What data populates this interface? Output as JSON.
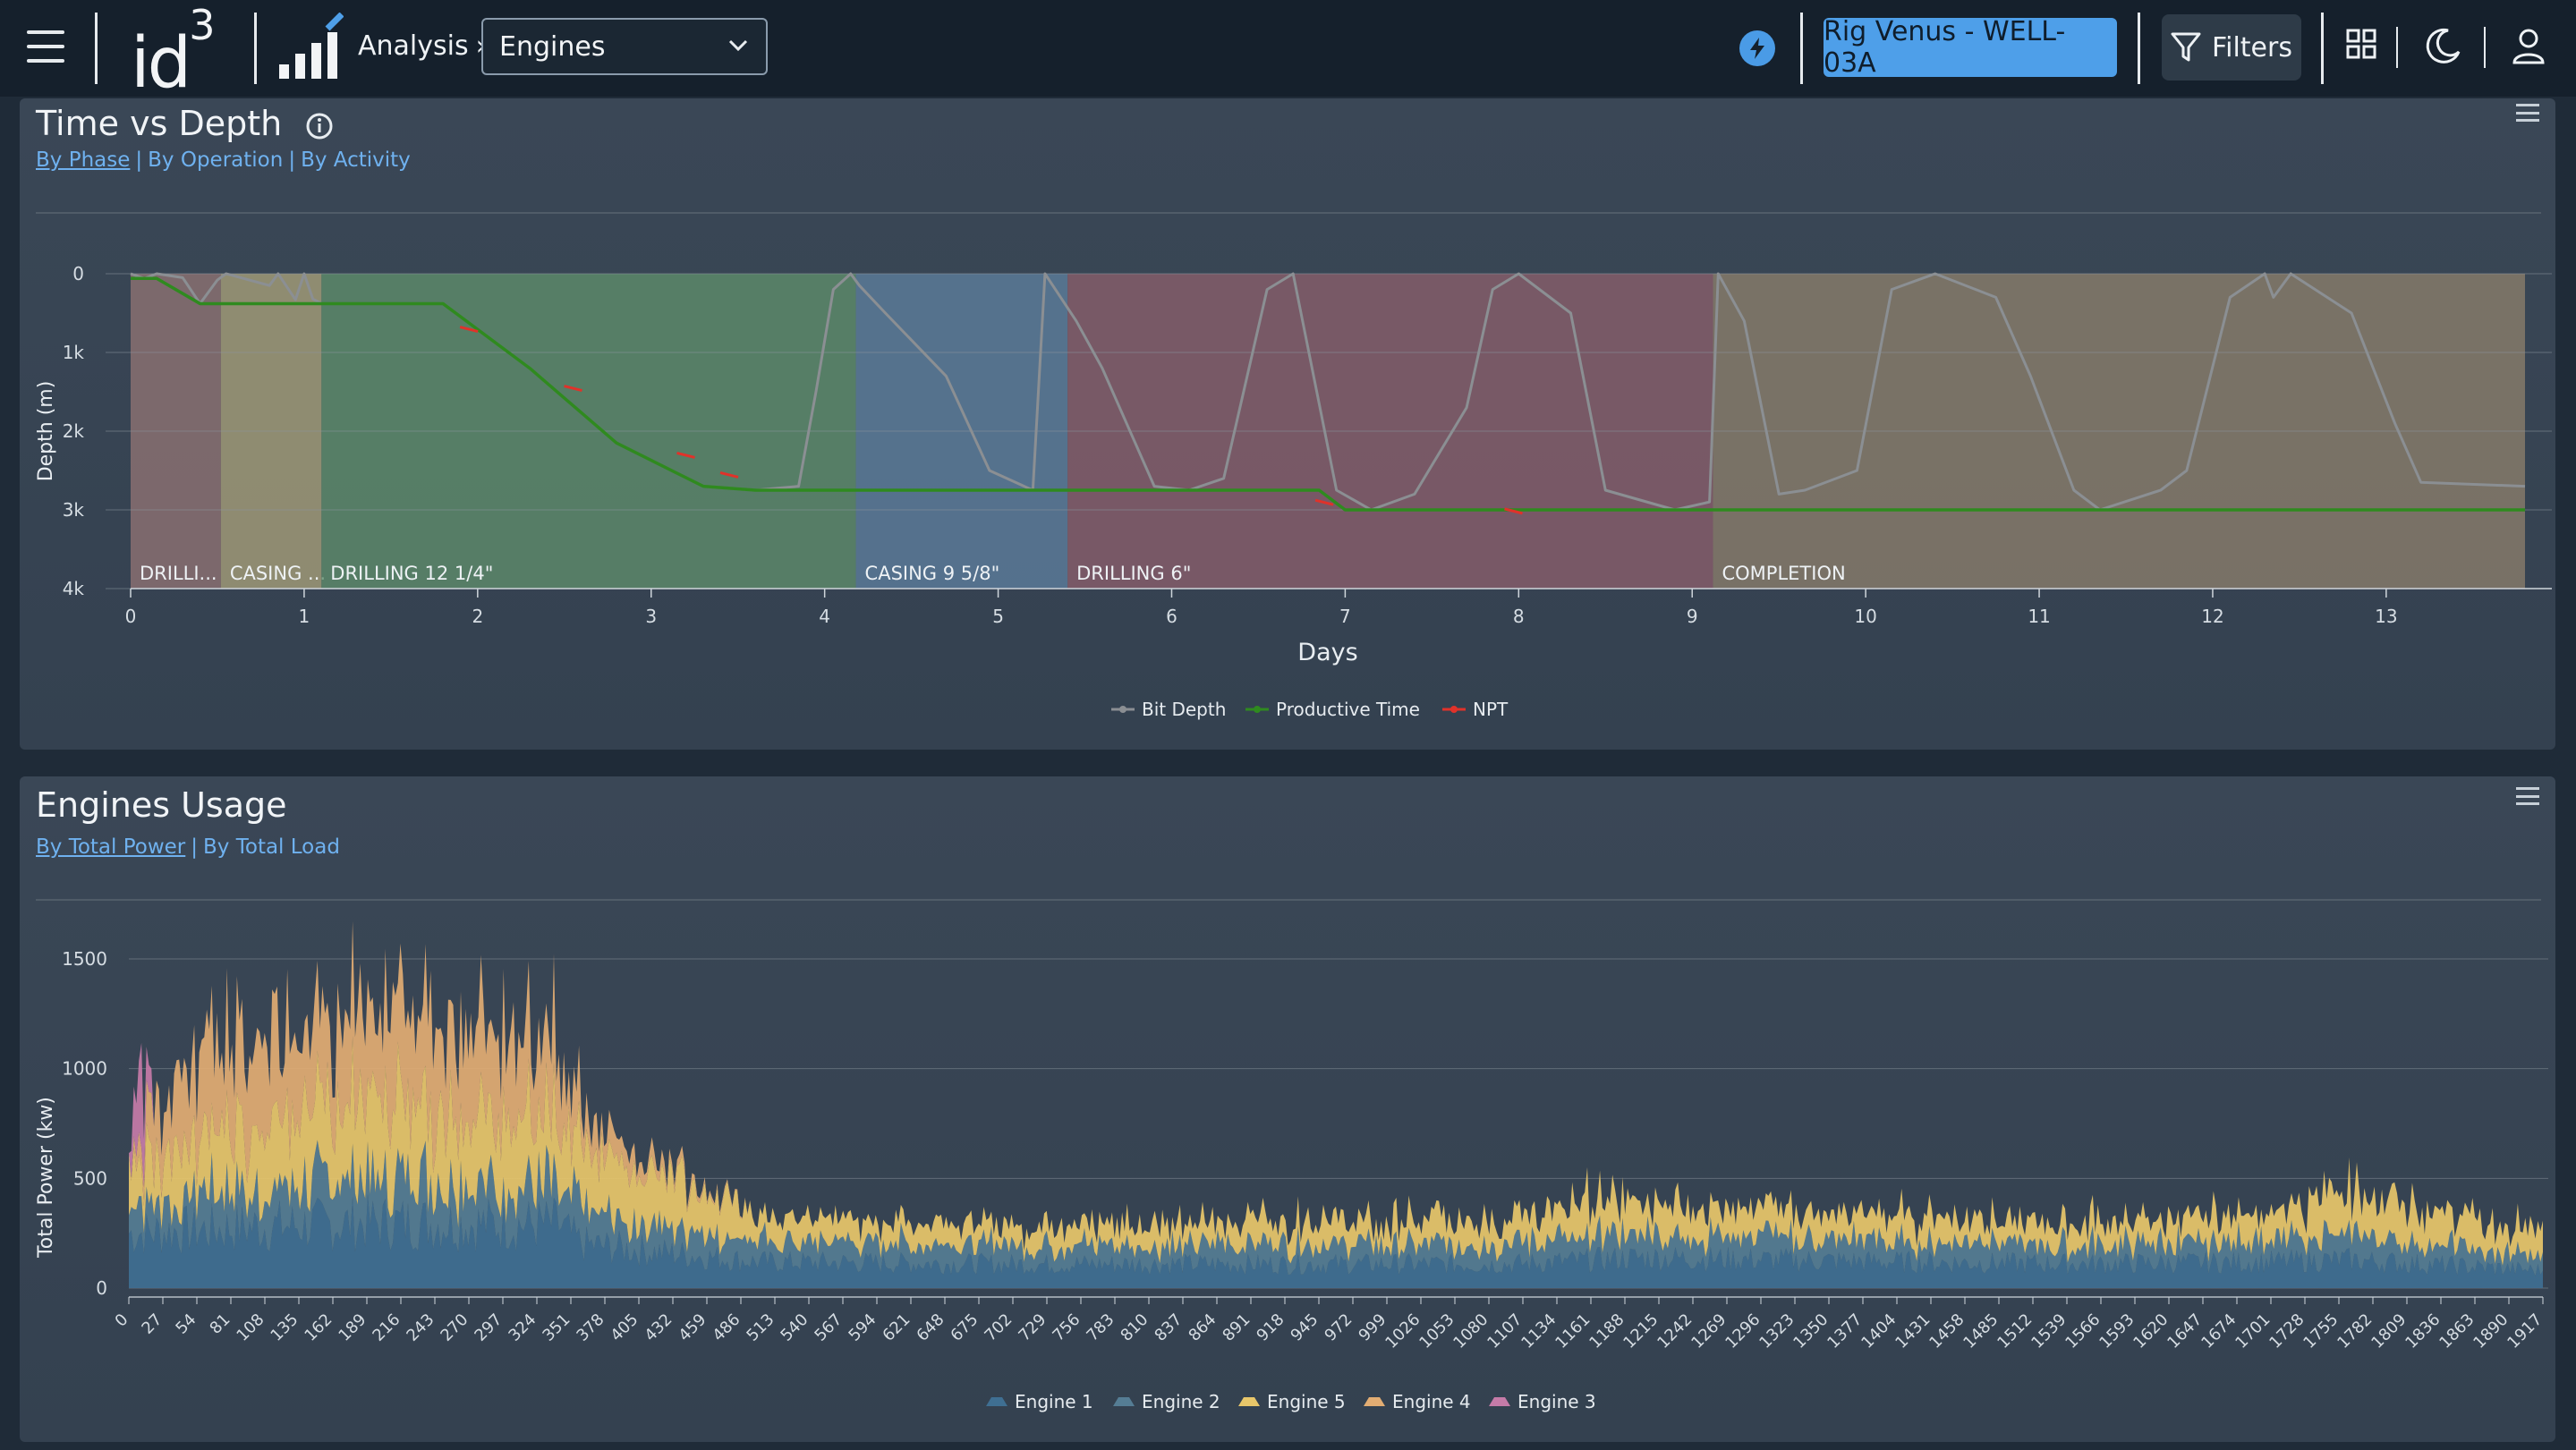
{
  "header": {
    "logo_text": "id",
    "logo_sup": "3",
    "breadcrumb": "Analysis",
    "selected_view": "Engines",
    "rig_label": "Rig Venus - WELL-03A",
    "filters_label": "Filters",
    "icons": [
      "menu-icon",
      "bolt-icon",
      "funnel-icon",
      "grid-icon",
      "moon-icon",
      "user-icon"
    ]
  },
  "time_vs_depth": {
    "title": "Time vs Depth",
    "links": [
      "By Phase",
      "By Operation",
      "By Activity"
    ]
  },
  "engines_usage": {
    "title": "Engines Usage",
    "links": [
      "By Total Power",
      "By Total Load"
    ]
  },
  "chart_data": [
    {
      "type": "line",
      "xlabel": "Days",
      "ylabel": "Depth (m)",
      "xlim": [
        0,
        13.8
      ],
      "ylim": [
        0,
        4000
      ],
      "y_inverted": true,
      "x_ticks": [
        "0",
        "1",
        "2",
        "3",
        "4",
        "5",
        "6",
        "7",
        "8",
        "9",
        "10",
        "11",
        "12",
        "13"
      ],
      "y_ticks": [
        "0",
        "1k",
        "2k",
        "3k",
        "4k"
      ],
      "legend_position": "bottom-center",
      "phases": [
        {
          "label": "DRILLI...",
          "start": 0.0,
          "end": 0.52,
          "color": "#8f7373"
        },
        {
          "label": "CASING ...",
          "start": 0.52,
          "end": 1.1,
          "color": "#a8a07a"
        },
        {
          "label": "DRILLING 12 1/4\"",
          "start": 1.1,
          "end": 4.18,
          "color": "#5f8e6b"
        },
        {
          "label": "CASING 9 5/8\"",
          "start": 4.18,
          "end": 5.4,
          "color": "#5e7f9e"
        },
        {
          "label": "DRILLING 6\"",
          "start": 5.4,
          "end": 9.12,
          "color": "#8b5f6c"
        },
        {
          "label": "COMPLETION",
          "start": 9.12,
          "end": 13.8,
          "color": "#8c7f6c"
        }
      ],
      "series": [
        {
          "name": "Bit Depth",
          "color": "#8b8f93",
          "x": [
            0,
            0.08,
            0.15,
            0.3,
            0.4,
            0.5,
            0.55,
            0.8,
            0.85,
            0.95,
            1.0,
            1.05,
            1.1,
            1.8,
            2.3,
            2.8,
            3.3,
            3.6,
            3.85,
            3.95,
            4.05,
            4.15,
            4.2,
            4.35,
            4.7,
            4.95,
            5.2,
            5.27,
            5.3,
            5.45,
            5.6,
            5.9,
            6.1,
            6.3,
            6.55,
            6.7,
            6.95,
            7.15,
            7.4,
            7.7,
            7.85,
            8.0,
            8.3,
            8.5,
            8.9,
            9.1,
            9.15,
            9.3,
            9.5,
            9.65,
            9.95,
            10.15,
            10.4,
            10.75,
            10.95,
            11.2,
            11.35,
            11.7,
            11.85,
            12.1,
            12.3,
            12.35,
            12.45,
            12.8,
            13.05,
            13.2,
            13.8
          ],
          "y": [
            0,
            60,
            0,
            50,
            380,
            80,
            0,
            150,
            0,
            330,
            0,
            320,
            380,
            380,
            1200,
            2150,
            2700,
            2750,
            2700,
            1500,
            200,
            0,
            150,
            500,
            1300,
            2500,
            2750,
            0,
            100,
            600,
            1200,
            2700,
            2750,
            2600,
            200,
            0,
            2750,
            3000,
            2800,
            1700,
            200,
            0,
            500,
            2750,
            3000,
            2900,
            0,
            600,
            2800,
            2750,
            2500,
            200,
            0,
            300,
            1300,
            2750,
            3000,
            2750,
            2500,
            300,
            0,
            300,
            0,
            500,
            1900,
            2650,
            2700
          ]
        },
        {
          "name": "Productive Time",
          "color": "#2f8a1f",
          "x": [
            0,
            0.15,
            0.4,
            1.1,
            1.8,
            2.3,
            2.8,
            3.3,
            3.6,
            6.5,
            6.85,
            7.0,
            8.0,
            9.0,
            13.8
          ],
          "y": [
            60,
            60,
            380,
            380,
            380,
            1200,
            2150,
            2700,
            2750,
            2750,
            2750,
            3000,
            3000,
            3000,
            3000
          ]
        },
        {
          "name": "NPT",
          "color": "#e0322a",
          "x": [
            1.95,
            2.55,
            3.2,
            3.45,
            6.88,
            7.97
          ],
          "y": [
            700,
            1450,
            2300,
            2550,
            2900,
            3010
          ]
        }
      ]
    },
    {
      "type": "area",
      "stacked": true,
      "xlabel": "",
      "ylabel": "Total Power (kw)",
      "xlim": [
        0,
        1917
      ],
      "ylim": [
        0,
        1500
      ],
      "y_ticks": [
        "0",
        "500",
        "1000",
        "1500"
      ],
      "x_ticks": [
        "0",
        "27",
        "54",
        "81",
        "108",
        "135",
        "162",
        "189",
        "216",
        "243",
        "270",
        "297",
        "324",
        "351",
        "378",
        "405",
        "432",
        "459",
        "486",
        "513",
        "540",
        "567",
        "594",
        "621",
        "648",
        "675",
        "702",
        "729",
        "756",
        "783",
        "810",
        "837",
        "864",
        "891",
        "918",
        "945",
        "972",
        "999",
        "1026",
        "1053",
        "1080",
        "1107",
        "1134",
        "1161",
        "1188",
        "1215",
        "1242",
        "1269",
        "1296",
        "1323",
        "1350",
        "1377",
        "1404",
        "1431",
        "1458",
        "1485",
        "1512",
        "1539",
        "1566",
        "1593",
        "1620",
        "1647",
        "1674",
        "1701",
        "1728",
        "1755",
        "1782",
        "1809",
        "1836",
        "1863",
        "1890",
        "1917"
      ],
      "legend_position": "bottom-center",
      "series": [
        {
          "name": "Engine 1",
          "color": "#3f6f92",
          "x": [
            0,
            100,
            200,
            340,
            360,
            500,
            700,
            900,
            1100,
            1200,
            1400,
            1550,
            1700,
            1760,
            1917
          ],
          "y": [
            250,
            280,
            300,
            290,
            200,
            120,
            110,
            110,
            110,
            140,
            120,
            110,
            120,
            130,
            80
          ]
        },
        {
          "name": "Engine 2",
          "color": "#557d94",
          "x": [
            0,
            100,
            200,
            340,
            360,
            500,
            700,
            900,
            1100,
            1200,
            1400,
            1550,
            1700,
            1760,
            1917
          ],
          "y": [
            150,
            170,
            200,
            190,
            150,
            100,
            90,
            90,
            90,
            110,
            100,
            90,
            100,
            110,
            60
          ]
        },
        {
          "name": "Engine 5",
          "color": "#e8c76a",
          "x": [
            0,
            100,
            200,
            340,
            360,
            450,
            500,
            700,
            900,
            1100,
            1160,
            1250,
            1400,
            1550,
            1700,
            1760,
            1850,
            1917
          ],
          "y": [
            200,
            300,
            350,
            300,
            250,
            230,
            110,
            90,
            110,
            110,
            180,
            130,
            110,
            100,
            130,
            200,
            150,
            110
          ]
        },
        {
          "name": "Engine 4",
          "color": "#e2ad73",
          "x": [
            0,
            20,
            60,
            100,
            150,
            200,
            250,
            300,
            340,
            360,
            400,
            450,
            500
          ],
          "y": [
            0,
            200,
            400,
            450,
            350,
            400,
            450,
            400,
            350,
            150,
            80,
            20,
            0
          ]
        },
        {
          "name": "Engine 3",
          "color": "#c57ba8",
          "x": [
            0,
            5,
            10,
            15,
            20
          ],
          "y": [
            0,
            300,
            350,
            250,
            0
          ]
        }
      ]
    }
  ]
}
